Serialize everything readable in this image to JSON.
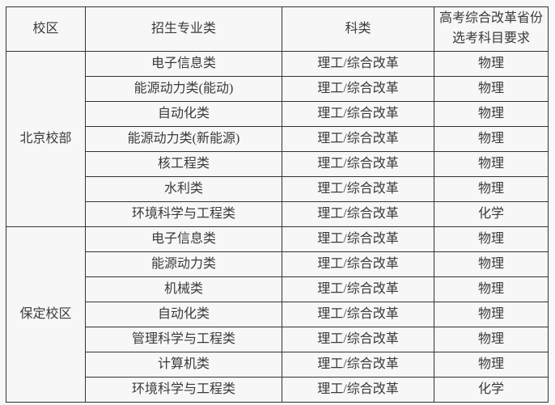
{
  "colors": {
    "background": "#f7f7f7",
    "border": "#333333",
    "text": "#3a3a3a"
  },
  "table": {
    "headers": [
      "校区",
      "招生专业类",
      "科类",
      "高考综合改革省份\n选考科目要求"
    ],
    "groups": [
      {
        "campus": "北京校部",
        "rows": [
          {
            "major": "电子信息类",
            "category": "理工/综合改革",
            "subject": "物理"
          },
          {
            "major": "能源动力类(能动)",
            "category": "理工/综合改革",
            "subject": "物理"
          },
          {
            "major": "自动化类",
            "category": "理工/综合改革",
            "subject": "物理"
          },
          {
            "major": "能源动力类(新能源)",
            "category": "理工/综合改革",
            "subject": "物理"
          },
          {
            "major": "核工程类",
            "category": "理工/综合改革",
            "subject": "物理"
          },
          {
            "major": "水利类",
            "category": "理工/综合改革",
            "subject": "物理"
          },
          {
            "major": "环境科学与工程类",
            "category": "理工/综合改革",
            "subject": "化学"
          }
        ]
      },
      {
        "campus": "保定校区",
        "rows": [
          {
            "major": "电子信息类",
            "category": "理工/综合改革",
            "subject": "物理"
          },
          {
            "major": "能源动力类",
            "category": "理工/综合改革",
            "subject": "物理"
          },
          {
            "major": "机械类",
            "category": "理工/综合改革",
            "subject": "物理"
          },
          {
            "major": "自动化类",
            "category": "理工/综合改革",
            "subject": "物理"
          },
          {
            "major": "管理科学与工程类",
            "category": "理工/综合改革",
            "subject": "物理"
          },
          {
            "major": "计算机类",
            "category": "理工/综合改革",
            "subject": "物理"
          },
          {
            "major": "环境科学与工程类",
            "category": "理工/综合改革",
            "subject": "化学"
          }
        ]
      }
    ]
  }
}
